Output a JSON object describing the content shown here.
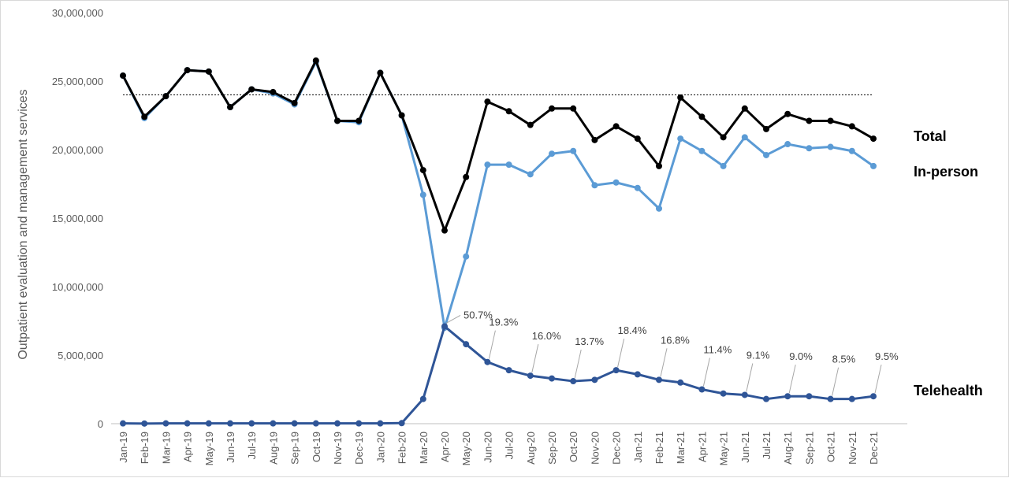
{
  "chart_data": {
    "type": "line",
    "ylabel": "Outpatient evaluation and management services",
    "ylim": [
      0,
      30000000
    ],
    "yticks": [
      0,
      5000000,
      10000000,
      15000000,
      20000000,
      25000000,
      30000000
    ],
    "ytick_labels": [
      "0",
      "5,000,000",
      "10,000,000",
      "15,000,000",
      "20,000,000",
      "25,000,000",
      "30,000,000"
    ],
    "grid": false,
    "reference_line": 24000000,
    "categories": [
      "Jan-19",
      "Feb-19",
      "Mar-19",
      "Apr-19",
      "May-19",
      "Jun-19",
      "Jul-19",
      "Aug-19",
      "Sep-19",
      "Oct-19",
      "Nov-19",
      "Dec-19",
      "Jan-20",
      "Feb-20",
      "Mar-20",
      "Apr-20",
      "May-20",
      "Jun-20",
      "Jul-20",
      "Aug-20",
      "Sep-20",
      "Oct-20",
      "Nov-20",
      "Dec-20",
      "Jan-21",
      "Feb-21",
      "Mar-21",
      "Apr-21",
      "May-21",
      "Jun-21",
      "Jul-21",
      "Aug-21",
      "Sep-21",
      "Oct-21",
      "Nov-21",
      "Dec-21"
    ],
    "series": [
      {
        "name": "In-person",
        "color": "#5b9bd5",
        "values": [
          25400000,
          22300000,
          23900000,
          25800000,
          25700000,
          23100000,
          24400000,
          24100000,
          23300000,
          26400000,
          22100000,
          22000000,
          25600000,
          22500000,
          16700000,
          7000000,
          12200000,
          18900000,
          18900000,
          18200000,
          19700000,
          19900000,
          17400000,
          17600000,
          17200000,
          15700000,
          20800000,
          19900000,
          18800000,
          20900000,
          19600000,
          20400000,
          20100000,
          20200000,
          19900000,
          18800000
        ]
      },
      {
        "name": "Total",
        "color": "#000000",
        "values": [
          25400000,
          22400000,
          23900000,
          25800000,
          25700000,
          23100000,
          24400000,
          24200000,
          23400000,
          26500000,
          22100000,
          22100000,
          25600000,
          22500000,
          18500000,
          14100000,
          18000000,
          23500000,
          22800000,
          21800000,
          23000000,
          23000000,
          20700000,
          21700000,
          20800000,
          18800000,
          23800000,
          22400000,
          20900000,
          23000000,
          21500000,
          22600000,
          22100000,
          22100000,
          21700000,
          20800000
        ]
      },
      {
        "name": "Telehealth",
        "color": "#2f5597",
        "values": [
          20000,
          10000,
          20000,
          20000,
          20000,
          20000,
          20000,
          20000,
          20000,
          20000,
          20000,
          20000,
          20000,
          40000,
          1800000,
          7100000,
          5800000,
          4500000,
          3900000,
          3500000,
          3300000,
          3100000,
          3200000,
          3900000,
          3600000,
          3200000,
          3000000,
          2500000,
          2200000,
          2100000,
          1800000,
          2000000,
          2000000,
          1800000,
          1800000,
          2000000
        ]
      }
    ],
    "annotations": [
      {
        "category": "Apr-20",
        "label": "50.7%"
      },
      {
        "category": "Jun-20",
        "label": "19.3%"
      },
      {
        "category": "Aug-20",
        "label": "16.0%"
      },
      {
        "category": "Oct-20",
        "label": "13.7%"
      },
      {
        "category": "Dec-20",
        "label": "18.4%"
      },
      {
        "category": "Feb-21",
        "label": "16.8%"
      },
      {
        "category": "Apr-21",
        "label": "11.4%"
      },
      {
        "category": "Jun-21",
        "label": "9.1%"
      },
      {
        "category": "Aug-21",
        "label": "9.0%"
      },
      {
        "category": "Oct-21",
        "label": "8.5%"
      },
      {
        "category": "Dec-21",
        "label": "9.5%"
      }
    ]
  }
}
